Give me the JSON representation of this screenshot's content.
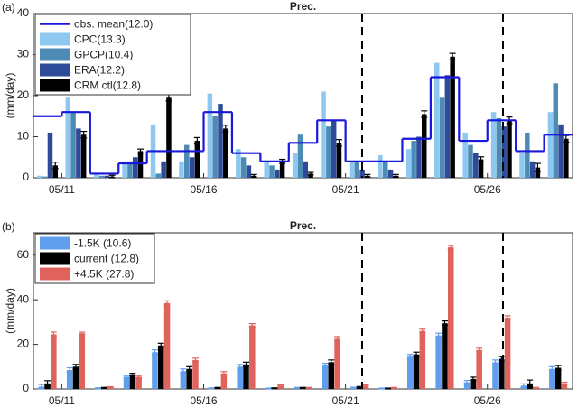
{
  "chart_data": [
    {
      "type": "bar",
      "panel_label": "(a)",
      "title": "Prec.",
      "ylabel": "(mm/day)",
      "categories": [
        null,
        "05/11",
        null,
        null,
        null,
        null,
        "05/16",
        null,
        null,
        null,
        null,
        "05/21",
        null,
        null,
        null,
        null,
        "05/26",
        null,
        null
      ],
      "ylim": [
        0,
        40
      ],
      "yticks": [
        0,
        10,
        20,
        30,
        40
      ],
      "legend": "upper left",
      "series": [
        {
          "name": "obs. mean(12.0)",
          "type": "step",
          "color": "#1818d8",
          "values": [
            15,
            16,
            1,
            3.5,
            6.5,
            6.5,
            16,
            6,
            4,
            8.5,
            14,
            4,
            4,
            9.5,
            24.5,
            9,
            14,
            6.5,
            10.5
          ]
        },
        {
          "name": "CPC(13.3)",
          "color": "#8ec8f0",
          "values": [
            0.5,
            19.5,
            1,
            4,
            13,
            4,
            20.5,
            7,
            4,
            6,
            21,
            4,
            5.5,
            7,
            28,
            11,
            16,
            6,
            16
          ]
        },
        {
          "name": "GPCP(10.4)",
          "color": "#4c8bb6",
          "values": [
            0.3,
            16,
            0.5,
            4,
            1,
            8,
            15,
            5,
            3,
            10.5,
            12.5,
            4,
            4,
            9,
            19.5,
            8,
            14.5,
            11,
            23
          ]
        },
        {
          "name": "ERA(12.2)",
          "color": "#2d4b98",
          "values": [
            11,
            12,
            0.5,
            5,
            4,
            5,
            18,
            3,
            2,
            4,
            14,
            2,
            2,
            10,
            25,
            6,
            12.5,
            4,
            13
          ]
        },
        {
          "name": "CRM ctl(12.8)",
          "color": "#000000",
          "values": [
            3,
            10.5,
            0.3,
            6.5,
            19.5,
            9,
            12,
            0.5,
            4,
            1,
            8.5,
            0.5,
            0.5,
            15.5,
            29.5,
            4.5,
            14,
            2.5,
            9.5
          ],
          "errors": [
            0.8,
            0.8,
            0.3,
            0.5,
            0.8,
            0.8,
            0.8,
            0.3,
            0.5,
            0.3,
            0.8,
            0.3,
            0.3,
            0.8,
            0.8,
            0.6,
            0.8,
            1,
            0.8
          ]
        }
      ]
    },
    {
      "type": "bar",
      "panel_label": "(b)",
      "title": "Prec.",
      "ylabel": "(mm/day)",
      "categories": [
        null,
        "05/11",
        null,
        null,
        null,
        null,
        "05/16",
        null,
        null,
        null,
        null,
        "05/21",
        null,
        null,
        null,
        null,
        "05/26",
        null,
        null
      ],
      "ylim": [
        0,
        70
      ],
      "yticks": [
        0,
        20,
        40,
        60
      ],
      "legend": "upper left",
      "series": [
        {
          "name": "-1.5K (10.6)",
          "color": "#5f9ded",
          "values": [
            1,
            8.5,
            0.3,
            5.5,
            16.5,
            8,
            0.3,
            10,
            0.2,
            0.5,
            10.5,
            0.5,
            0.2,
            14.5,
            24,
            3,
            12,
            1.5,
            9
          ],
          "errors": [
            1,
            1,
            0.2,
            0.5,
            1,
            1,
            0.2,
            1,
            0.2,
            0.2,
            1,
            0.3,
            0.2,
            1,
            1,
            0.8,
            1,
            0.8,
            1
          ]
        },
        {
          "name": "current (12.8)",
          "color": "#000000",
          "values": [
            2.5,
            10,
            0.5,
            6.5,
            19.5,
            9,
            0.5,
            11,
            0.3,
            0.5,
            12,
            0.8,
            0.2,
            15.5,
            29.5,
            4.5,
            13.5,
            2.5,
            9.5
          ],
          "errors": [
            1.2,
            1,
            0.2,
            0.5,
            1,
            1,
            0.2,
            1,
            0.2,
            0.2,
            1,
            0.3,
            0.2,
            1,
            1,
            0.8,
            1,
            1.5,
            1
          ]
        },
        {
          "name": "+4.5K (27.8)",
          "color": "#e0625c",
          "values": [
            24.5,
            25,
            0.8,
            5.5,
            38.5,
            13,
            7,
            28.5,
            1.5,
            0.5,
            22.5,
            1.5,
            0.5,
            26,
            63.5,
            17.5,
            32,
            0.5,
            2.5
          ],
          "errors": [
            1,
            0.5,
            0.2,
            0.5,
            1,
            0.8,
            0.8,
            0.8,
            0.3,
            0.2,
            1,
            0.3,
            0.2,
            0.8,
            0.8,
            0.8,
            0.8,
            0.2,
            0.5
          ]
        }
      ]
    }
  ]
}
